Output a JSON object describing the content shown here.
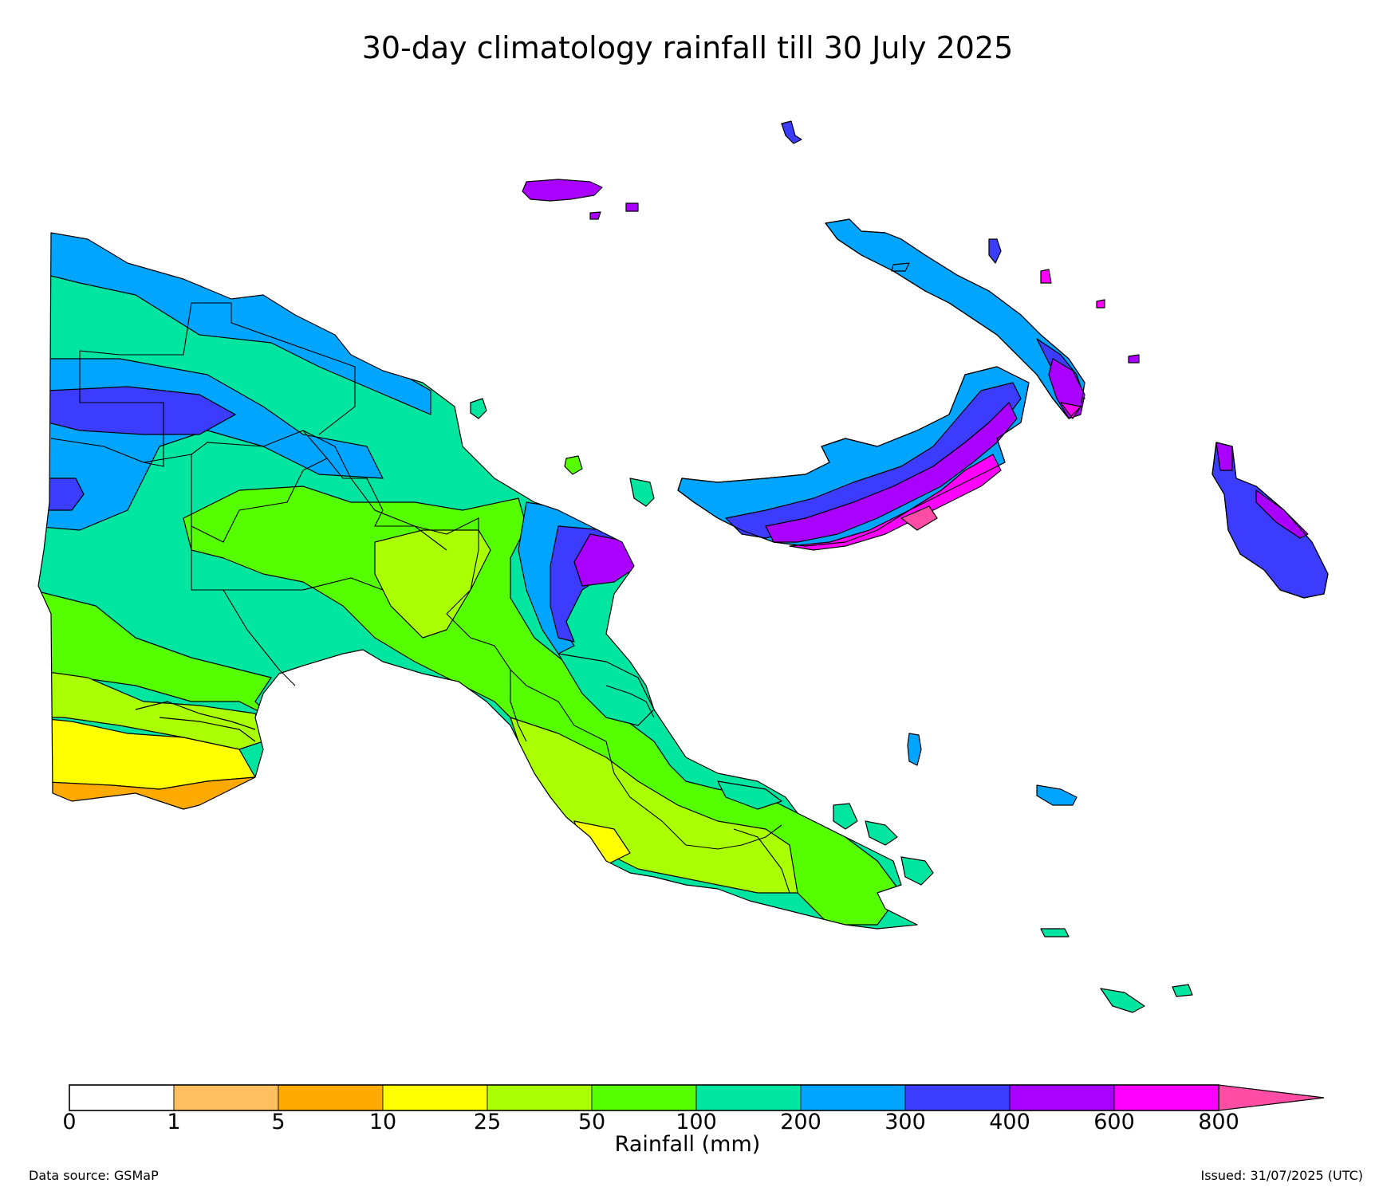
{
  "title": "30-day climatology rainfall till 30 July 2025",
  "colorbar": {
    "label": "Rainfall (mm)",
    "ticks": [
      "0",
      "1",
      "5",
      "10",
      "25",
      "50",
      "100",
      "200",
      "300",
      "400",
      "600",
      "800"
    ],
    "colors": [
      "#ffffff",
      "#ffbf5f",
      "#ffaa00",
      "#ffff00",
      "#aaff00",
      "#55ff00",
      "#00e6a0",
      "#00a5ff",
      "#3c3cff",
      "#aa00ff",
      "#ff00ff"
    ],
    "extend_color": "#ff4da6"
  },
  "footer": {
    "source": "Data source: GSMaP",
    "issued": "Issued: 31/07/2025 (UTC)"
  },
  "map_palette": {
    "orange": "#ffaa00",
    "yellow": "#ffff00",
    "lime": "#aaff00",
    "green": "#55ff00",
    "teal": "#00e6a0",
    "sky": "#00a5ff",
    "blue": "#3c3cff",
    "purple": "#aa00ff",
    "magenta": "#ff00ff",
    "pink": "#ff4da6"
  }
}
